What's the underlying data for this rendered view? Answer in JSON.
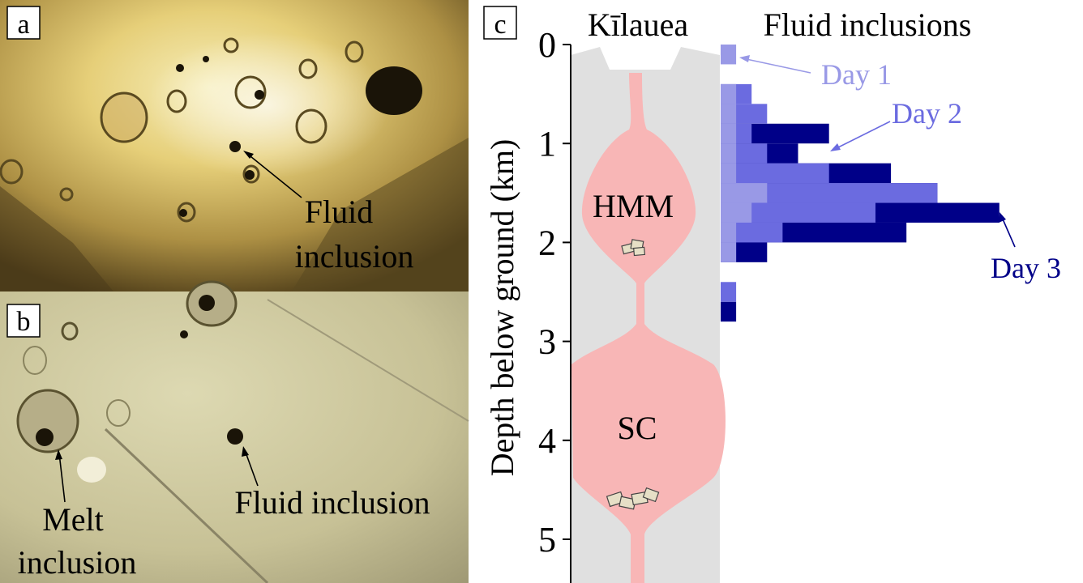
{
  "panels": {
    "a": {
      "label": "a",
      "annotation": "Fluid\ninclusion"
    },
    "b": {
      "label": "b",
      "annotations": [
        "Melt\ninclusion",
        "Fluid inclusion"
      ]
    },
    "c": {
      "label": "c",
      "column_title": "Kīlauea",
      "histogram_title": "Fluid inclusions",
      "y_axis_label": "Depth below ground (km)",
      "reservoirs": [
        "HMM",
        "SC"
      ]
    }
  },
  "chart_data": {
    "type": "bar",
    "orientation": "horizontal",
    "title": "Fluid inclusions",
    "ylabel": "Depth below ground (km)",
    "ylim": [
      0,
      5.5
    ],
    "yticks": [
      0,
      1,
      2,
      3,
      4,
      5
    ],
    "bin_width_km": 0.2,
    "colors": {
      "Day 1": "#9999e6",
      "Day 2": "#6b6be0",
      "Day 3": "#000088"
    },
    "series": [
      {
        "name": "Day 1",
        "bins": [
          [
            0.0,
            0.2,
            1
          ],
          [
            0.4,
            0.6,
            1
          ],
          [
            0.6,
            0.8,
            1
          ],
          [
            0.8,
            1.0,
            1
          ],
          [
            1.0,
            1.2,
            1
          ],
          [
            1.2,
            1.4,
            1
          ],
          [
            1.4,
            1.6,
            3
          ],
          [
            1.6,
            1.8,
            2
          ],
          [
            1.8,
            2.0,
            1
          ],
          [
            2.0,
            2.2,
            1
          ]
        ]
      },
      {
        "name": "Day 2",
        "bins": [
          [
            0.4,
            0.6,
            2
          ],
          [
            0.6,
            0.8,
            3
          ],
          [
            0.8,
            1.0,
            2
          ],
          [
            1.0,
            1.2,
            3
          ],
          [
            1.2,
            1.4,
            7
          ],
          [
            1.4,
            1.6,
            14
          ],
          [
            1.6,
            1.8,
            10
          ],
          [
            1.8,
            2.0,
            4
          ],
          [
            2.0,
            2.2,
            1
          ],
          [
            2.4,
            2.6,
            1
          ]
        ]
      },
      {
        "name": "Day 3",
        "bins": [
          [
            0.8,
            1.0,
            7
          ],
          [
            1.0,
            1.2,
            5
          ],
          [
            1.2,
            1.4,
            11
          ],
          [
            1.4,
            1.6,
            14
          ],
          [
            1.6,
            1.8,
            18
          ],
          [
            1.8,
            2.0,
            12
          ],
          [
            2.0,
            2.2,
            3
          ],
          [
            2.6,
            2.8,
            1
          ]
        ]
      }
    ]
  }
}
